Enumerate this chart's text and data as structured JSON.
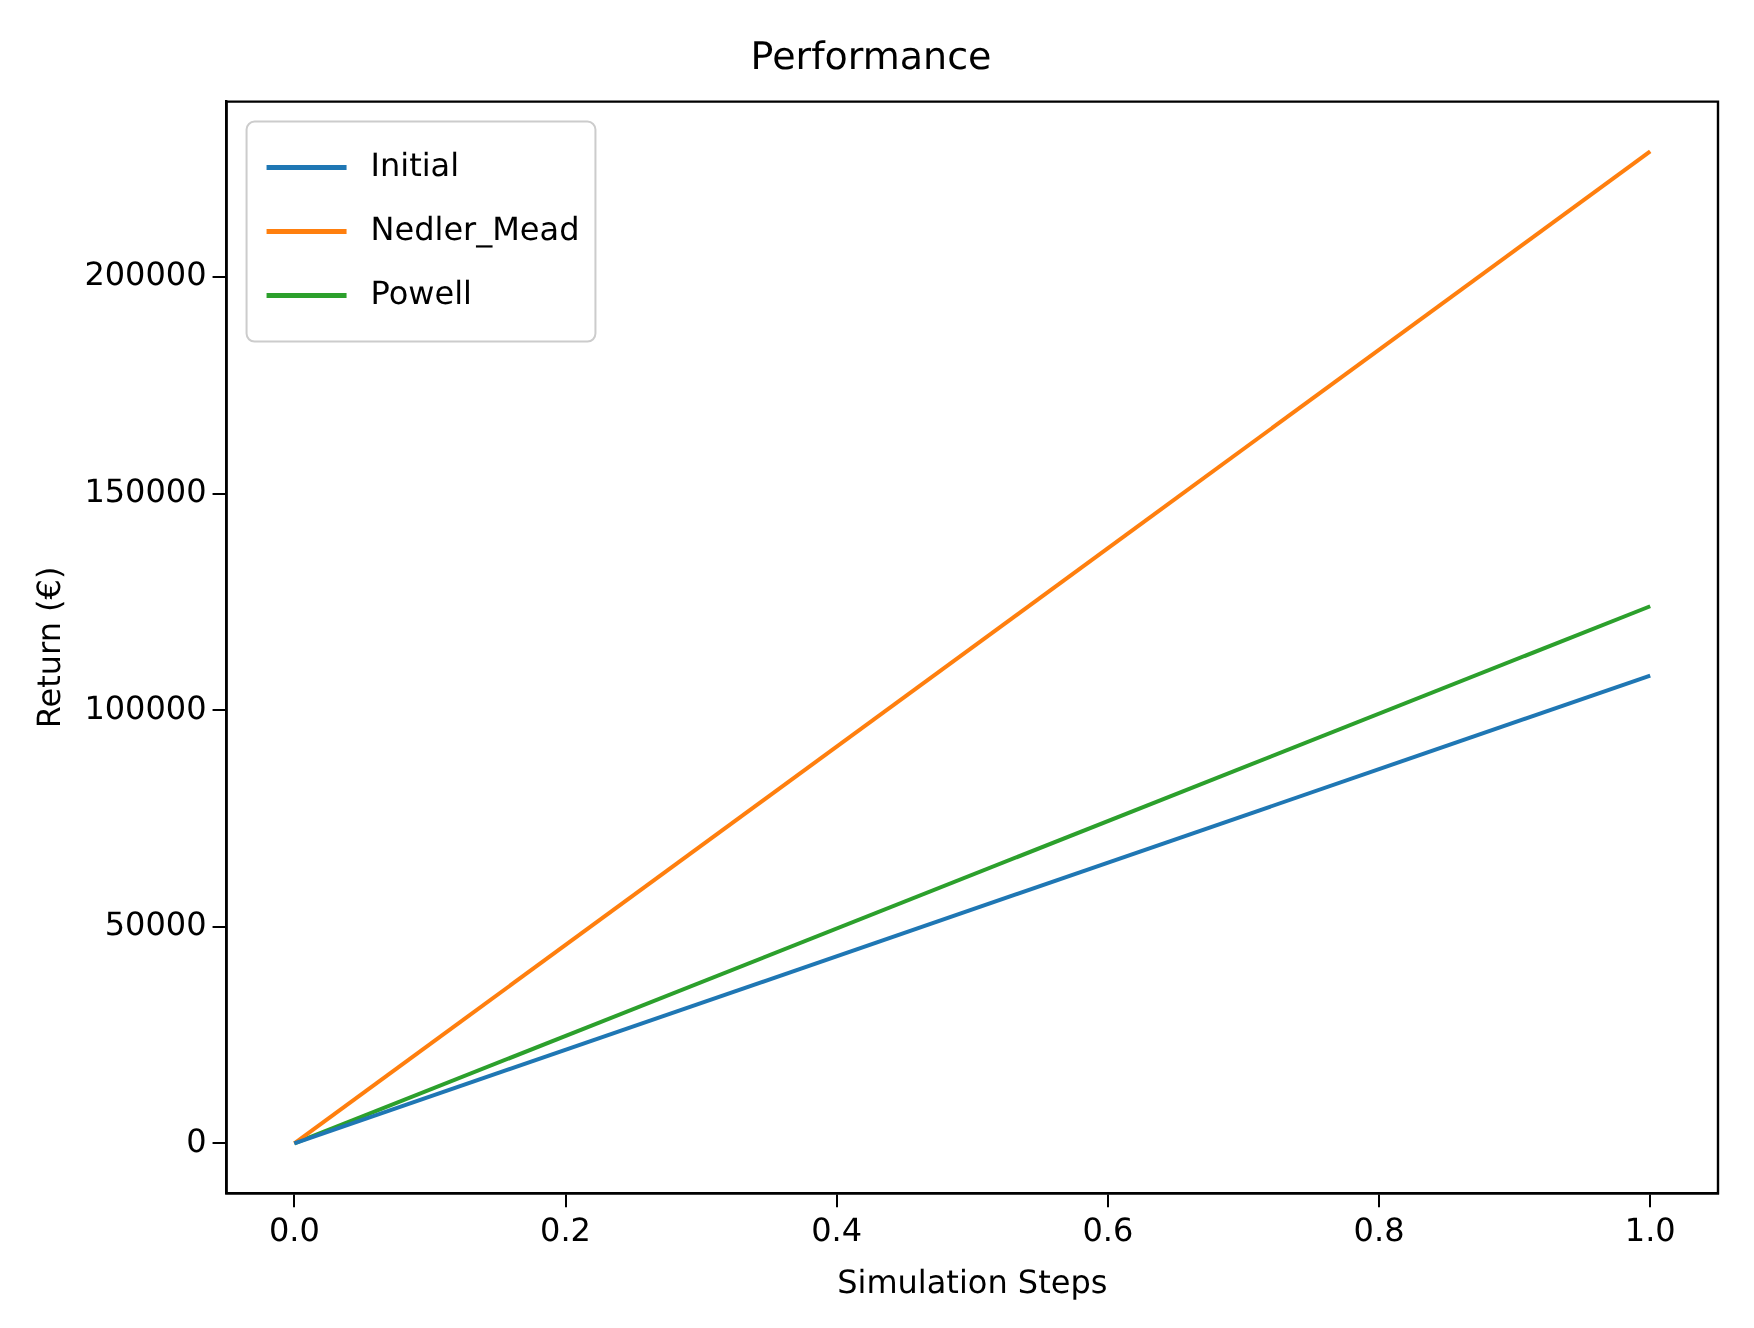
{
  "chart_data": {
    "type": "line",
    "title": "Performance",
    "xlabel": "Simulation Steps",
    "ylabel": "Return (€)",
    "x": [
      0,
      1
    ],
    "series": [
      {
        "name": "Initial",
        "color": "#1f77b4",
        "values": [
          0,
          108000
        ]
      },
      {
        "name": "Nedler_Mead",
        "color": "#ff7f0e",
        "values": [
          0,
          229000
        ]
      },
      {
        "name": "Powell",
        "color": "#2ca02c",
        "values": [
          0,
          124000
        ]
      }
    ],
    "xlim": [
      -0.05,
      1.05
    ],
    "xticks": [
      {
        "value": 0,
        "label": "0.0"
      },
      {
        "value": 0.2,
        "label": "0.2"
      },
      {
        "value": 0.4,
        "label": "0.4"
      },
      {
        "value": 0.6,
        "label": "0.6"
      },
      {
        "value": 0.8,
        "label": "0.8"
      },
      {
        "value": 1,
        "label": "1.0"
      }
    ],
    "ylim": [
      -11500,
      240500
    ],
    "yticks": [
      0,
      50000,
      100000,
      150000,
      200000
    ],
    "grid": false,
    "legend": "top left",
    "marker": "none",
    "line_style": "solid"
  }
}
